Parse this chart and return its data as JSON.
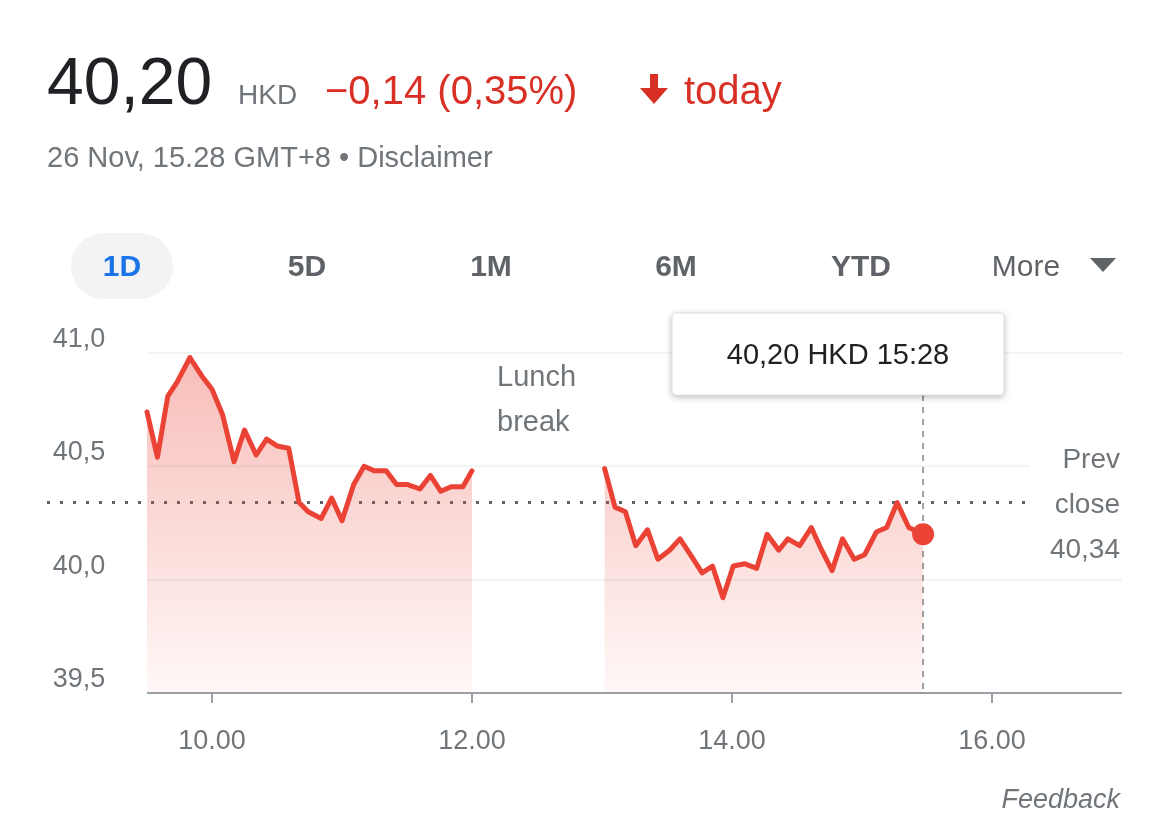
{
  "chart_data": {
    "type": "area",
    "title": "40,20",
    "subtitle": "26 Nov, 15.28 GMT+8 • Disclaimer",
    "annotations": [
      "HKD",
      "−0,14 (0,35%)",
      "today",
      "1D",
      "5D",
      "1M",
      "6M",
      "YTD",
      "More",
      "Lunch break",
      "Feedback"
    ],
    "x": [
      9.5,
      9.58,
      9.66,
      9.73,
      9.83,
      9.92,
      10.0,
      10.08,
      10.17,
      10.25,
      10.34,
      10.42,
      10.5,
      10.59,
      10.67,
      10.74,
      10.84,
      10.92,
      11.0,
      11.09,
      11.17,
      11.25,
      11.34,
      11.42,
      11.5,
      11.6,
      11.68,
      11.76,
      11.84,
      11.93,
      12.0,
      12.5,
      13.02,
      13.1,
      13.18,
      13.26,
      13.35,
      13.43,
      13.52,
      13.6,
      13.68,
      13.77,
      13.85,
      13.93,
      14.01,
      14.1,
      14.19,
      14.27,
      14.36,
      14.43,
      14.52,
      14.61,
      14.69,
      14.77,
      14.85,
      14.94,
      15.02,
      15.11,
      15.19,
      15.27,
      15.36,
      15.47
    ],
    "series": [
      {
        "color": "#ea4335",
        "values": [
          40.74,
          40.54,
          40.81,
          40.87,
          40.98,
          40.9,
          40.84,
          40.73,
          40.52,
          40.66,
          40.55,
          40.62,
          40.59,
          40.58,
          40.34,
          40.3,
          40.27,
          40.36,
          40.26,
          40.42,
          40.5,
          40.48,
          40.48,
          40.42,
          40.42,
          40.4,
          40.46,
          40.39,
          40.41,
          40.41,
          40.48,
          null,
          40.49,
          40.32,
          40.3,
          40.15,
          40.22,
          40.09,
          40.13,
          40.18,
          40.11,
          40.03,
          40.06,
          39.92,
          40.06,
          40.07,
          40.05,
          40.2,
          40.13,
          40.18,
          40.15,
          40.23,
          40.13,
          40.04,
          40.18,
          40.09,
          40.11,
          40.21,
          40.23,
          40.34,
          40.23,
          40.2
        ]
      },
      {
        "type": "scatter",
        "color": "#ea4335",
        "marker": "circle",
        "x": [
          15.47
        ],
        "values": [
          40.2
        ]
      }
    ],
    "xlim": [
      9.5,
      17
    ],
    "xticks": [
      {
        "value": 10,
        "label": "10.00"
      },
      {
        "value": 12,
        "label": "12.00"
      },
      {
        "value": 14,
        "label": "14.00"
      },
      {
        "value": 16,
        "label": "16.00"
      }
    ],
    "ylim": [
      39.5,
      41
    ],
    "yticks": [
      {
        "value": 39.5,
        "label": "39,5"
      },
      {
        "value": 40,
        "label": "40,0"
      },
      {
        "value": 40.5,
        "label": "40,5"
      },
      {
        "value": 41,
        "label": "41,0"
      }
    ],
    "grid": "y",
    "line_style": "solid",
    "ref_lines": [
      {
        "axis": "y",
        "value": 40.34,
        "label": "Prev close 40,34",
        "line_style": "dotted",
        "color": "#5f6368"
      },
      {
        "axis": "x",
        "value": 15.47,
        "label": "40,20 HKD 15:28",
        "line_style": "dashed",
        "color": "#9aa0a6"
      }
    ]
  }
}
